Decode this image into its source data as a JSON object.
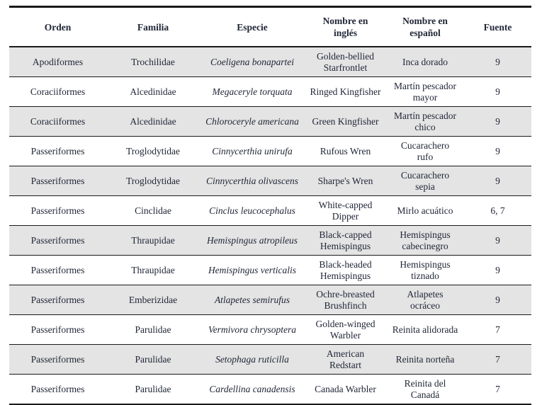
{
  "table": {
    "columns": [
      "Orden",
      "Familia",
      "Especie",
      "Nombre en inglés",
      "Nombre en español",
      "Fuente"
    ],
    "rows": [
      {
        "orden": "Apodiformes",
        "familia": "Trochilidae",
        "especie": "Coeligena bonapartei",
        "nombre_ingles": "Golden-bellied Starfrontlet",
        "nombre_espanol": "Inca dorado",
        "fuente": "9"
      },
      {
        "orden": "Coraciiformes",
        "familia": "Alcedinidae",
        "especie": "Megaceryle torquata",
        "nombre_ingles": "Ringed Kingfisher",
        "nombre_espanol": "Martín pescador mayor",
        "fuente": "9"
      },
      {
        "orden": "Coraciiformes",
        "familia": "Alcedinidae",
        "especie": "Chloroceryle americana",
        "nombre_ingles": "Green Kingfisher",
        "nombre_espanol": "Martín pescador chico",
        "fuente": "9"
      },
      {
        "orden": "Passeriformes",
        "familia": "Troglodytidae",
        "especie": "Cinnycerthia unirufa",
        "nombre_ingles": "Rufous Wren",
        "nombre_espanol": "Cucarachero rufo",
        "fuente": "9"
      },
      {
        "orden": "Passeriformes",
        "familia": "Troglodytidae",
        "especie": "Cinnycerthia olivascens",
        "nombre_ingles": "Sharpe's Wren",
        "nombre_espanol": "Cucarachero sepia",
        "fuente": "9"
      },
      {
        "orden": "Passeriformes",
        "familia": "Cinclidae",
        "especie": "Cinclus leucocephalus",
        "nombre_ingles": "White-capped Dipper",
        "nombre_espanol": "Mirlo acuático",
        "fuente": "6, 7"
      },
      {
        "orden": "Passeriformes",
        "familia": "Thraupidae",
        "especie": "Hemispingus atropileus",
        "nombre_ingles": "Black-capped Hemispingus",
        "nombre_espanol": "Hemispingus cabecinegro",
        "fuente": "9"
      },
      {
        "orden": "Passeriformes",
        "familia": "Thraupidae",
        "especie": "Hemispingus verticalis",
        "nombre_ingles": "Black-headed Hemispingus",
        "nombre_espanol": "Hemispingus tiznado",
        "fuente": "9"
      },
      {
        "orden": "Passeriformes",
        "familia": "Emberizidae",
        "especie": "Atlapetes semirufus",
        "nombre_ingles": "Ochre-breasted Brushfinch",
        "nombre_espanol": "Atlapetes ocráceo",
        "fuente": "9"
      },
      {
        "orden": "Passeriformes",
        "familia": "Parulidae",
        "especie": "Vermivora chrysoptera",
        "nombre_ingles": "Golden-winged Warbler",
        "nombre_espanol": "Reinita alidorada",
        "fuente": "7"
      },
      {
        "orden": "Passeriformes",
        "familia": "Parulidae",
        "especie": "Setophaga ruticilla",
        "nombre_ingles": "American Redstart",
        "nombre_espanol": "Reinita norteña",
        "fuente": "7"
      },
      {
        "orden": "Passeriformes",
        "familia": "Parulidae",
        "especie": "Cardellina canadensis",
        "nombre_ingles": "Canada Warbler",
        "nombre_espanol": "Reinita del Canadá",
        "fuente": "7"
      }
    ]
  },
  "colors": {
    "text": "#212737",
    "row_shade": "#e4e4e4",
    "border": "#1a1a1a",
    "background": "#ffffff"
  }
}
